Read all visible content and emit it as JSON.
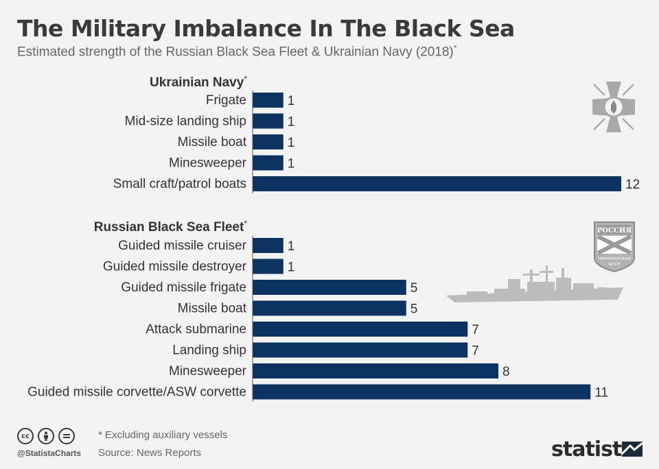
{
  "header": {
    "title": "The Military Imbalance In The Black Sea",
    "subtitle": "Estimated strength of the Russian Black Sea Fleet & Ukrainian Navy (2018)",
    "subtitle_mark": "*"
  },
  "colors": {
    "bar": "#0d3460",
    "background": "#f3f3f3",
    "label": "#333333",
    "emblem": "#a9a9a9",
    "ship": "#bcbcbc"
  },
  "chart_data": [
    {
      "type": "bar",
      "orientation": "horizontal",
      "title": "Ukrainian Navy",
      "title_mark": "*",
      "categories": [
        "Frigate",
        "Mid-size landing ship",
        "Missile boat",
        "Minesweeper",
        "Small craft/patrol boats"
      ],
      "values": [
        1,
        1,
        1,
        1,
        12
      ],
      "xlim": [
        0,
        12
      ]
    },
    {
      "type": "bar",
      "orientation": "horizontal",
      "title": "Russian Black Sea Fleet",
      "title_mark": "*",
      "categories": [
        "Guided missile cruiser",
        "Guided missile destroyer",
        "Guided missile frigate",
        "Missile boat",
        "Attack submarine",
        "Landing ship",
        "Minesweeper",
        "Guided missile corvette/ASW corvette"
      ],
      "values": [
        1,
        1,
        5,
        5,
        7,
        7,
        8,
        11
      ],
      "xlim": [
        0,
        12
      ]
    }
  ],
  "emblems": {
    "ua_icon": "ukrainian-navy-emblem-icon",
    "ru_icon": "russian-black-sea-fleet-emblem-icon",
    "ru_top_text": "РОССИЯ",
    "ru_bottom_text_1": "ЧЕРНОМОРСКИЙ",
    "ru_bottom_text_2": "ФЛОТ",
    "ship_icon": "warship-silhouette-icon"
  },
  "footer": {
    "license_icons": [
      "cc-icon",
      "by-icon",
      "nd-icon"
    ],
    "cc_text": "cc",
    "handle": "@StatistaCharts",
    "note": "* Excluding auxiliary vessels",
    "source": "Source: News Reports",
    "brand": "statista"
  }
}
